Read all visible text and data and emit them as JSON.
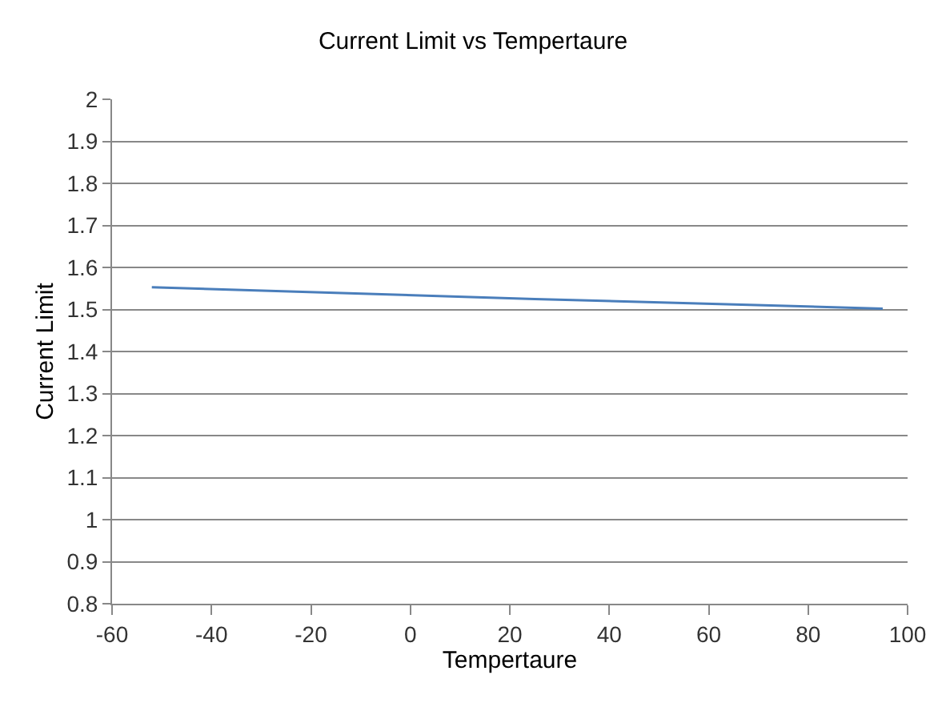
{
  "chart_data": {
    "type": "line",
    "title": "Current Limit vs Tempertaure",
    "xlabel": "Tempertaure",
    "ylabel": "Current Limit",
    "x": [
      -52,
      25,
      95
    ],
    "series": [
      {
        "color": "#4a7ebb",
        "values": [
          1.553,
          1.525,
          1.502
        ]
      }
    ],
    "xlim": [
      -60,
      100
    ],
    "xticks": [
      -60,
      -40,
      -20,
      0,
      20,
      40,
      60,
      80,
      100
    ],
    "ylim": [
      0.8,
      2
    ],
    "yticks": [
      0.8,
      0.9,
      1,
      1.1,
      1.2,
      1.3,
      1.4,
      1.5,
      1.6,
      1.7,
      1.8,
      1.9,
      2
    ],
    "grid": "y",
    "marker": "none",
    "line_style": "solid"
  }
}
